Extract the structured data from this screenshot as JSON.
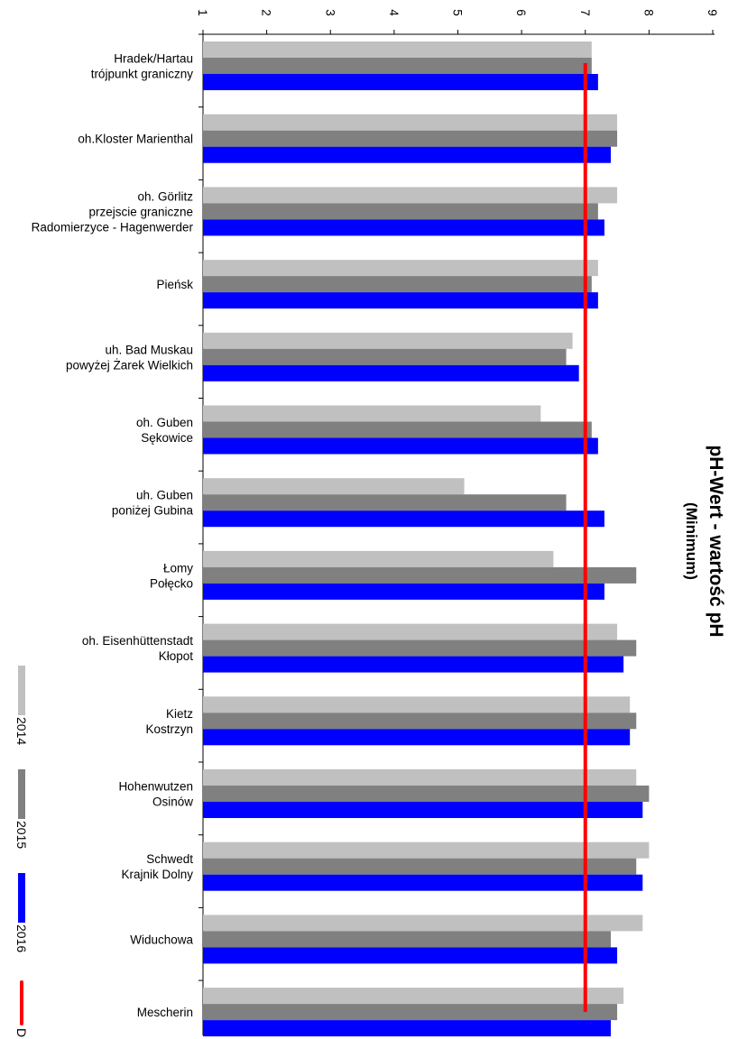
{
  "chart_data": {
    "type": "bar",
    "orientation": "horizontal",
    "title": "pH-Wert - wartość pH",
    "subtitle": "(Minimum)",
    "categories": [
      [
        "Hradek/Hartau",
        "trójpunkt graniczny"
      ],
      [
        "oh.Kloster Marienthal"
      ],
      [
        "oh. Görlitz",
        "przejscie graniczne",
        "Radomierzyce - Hagenwerder"
      ],
      [
        "Pieńsk"
      ],
      [
        "uh. Bad Muskau",
        "powyżej Żarek Wielkich"
      ],
      [
        "oh. Guben",
        "Sękowice"
      ],
      [
        "uh. Guben",
        "poniżej Gubina"
      ],
      [
        "Łomy",
        "Połęcko"
      ],
      [
        "oh. Eisenhüttenstadt",
        "Kłopot"
      ],
      [
        "Kietz",
        "Kostrzyn"
      ],
      [
        "Hohenwutzen",
        "Osinów"
      ],
      [
        "Schwedt",
        "Krajnik Dolny"
      ],
      [
        "Widuchowa"
      ],
      [
        "Mescherin"
      ]
    ],
    "series": [
      {
        "name": "2014",
        "color": "#c0c0c0",
        "values": [
          7.1,
          7.5,
          7.5,
          7.2,
          6.8,
          6.3,
          5.1,
          6.5,
          7.5,
          7.7,
          7.8,
          8.0,
          7.9,
          7.6
        ]
      },
      {
        "name": "2015",
        "color": "#808080",
        "values": [
          7.1,
          7.5,
          7.2,
          7.1,
          6.7,
          7.1,
          6.7,
          7.8,
          7.8,
          7.8,
          8.0,
          7.8,
          7.4,
          7.5
        ]
      },
      {
        "name": "2016",
        "color": "#0000ff",
        "values": [
          7.2,
          7.4,
          7.3,
          7.2,
          6.9,
          7.2,
          7.3,
          7.3,
          7.6,
          7.7,
          7.9,
          7.9,
          7.5,
          7.4
        ]
      }
    ],
    "reference_line": {
      "name": "D",
      "value": 7.0,
      "color": "#ff0000"
    },
    "ticks": [
      "1",
      "2",
      "3",
      "4",
      "5",
      "6",
      "7",
      "8",
      "9"
    ],
    "xlim": [
      1,
      9
    ],
    "legend_position": "bottom-left"
  }
}
